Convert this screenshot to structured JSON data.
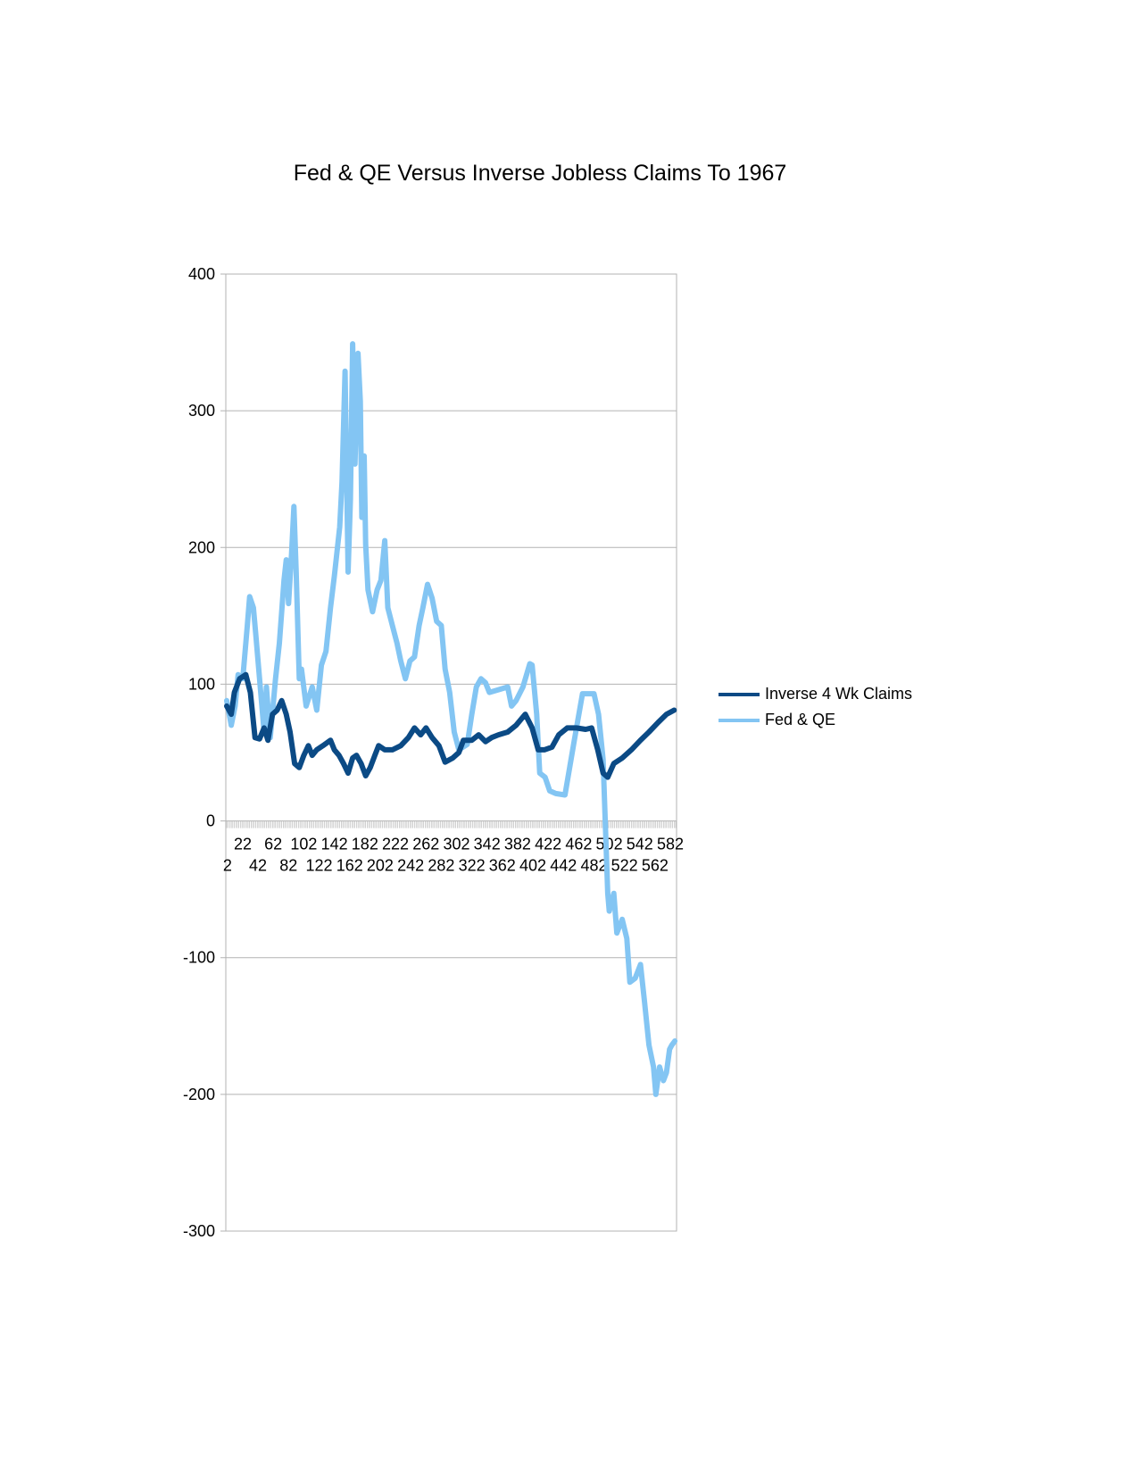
{
  "chart_data": {
    "type": "line",
    "title": "Fed & QE Versus Inverse Jobless Claims To 1967",
    "xlabel": "",
    "ylabel": "",
    "ylim": [
      -300,
      400
    ],
    "xlim": [
      1,
      589
    ],
    "y_ticks": [
      400,
      300,
      200,
      100,
      0,
      -100,
      -200,
      -300
    ],
    "x_tick_labels": [
      "2",
      "22",
      "42",
      "62",
      "82",
      "102",
      "122",
      "142",
      "162",
      "182",
      "202",
      "222",
      "242",
      "262",
      "282",
      "302",
      "322",
      "342",
      "362",
      "382",
      "402",
      "422",
      "442",
      "462",
      "482",
      "502",
      "522",
      "542",
      "562",
      "582"
    ],
    "grid": true,
    "legend_placement": "right",
    "series": [
      {
        "name": "Inverse 4 Wk Claims",
        "color": "#0b4a85",
        "points": [
          [
            1,
            84
          ],
          [
            7,
            78
          ],
          [
            11,
            94
          ],
          [
            18,
            104
          ],
          [
            26,
            107
          ],
          [
            32,
            94
          ],
          [
            38,
            61
          ],
          [
            44,
            60
          ],
          [
            50,
            68
          ],
          [
            55,
            59
          ],
          [
            61,
            78
          ],
          [
            67,
            81
          ],
          [
            73,
            88
          ],
          [
            79,
            78
          ],
          [
            84,
            65
          ],
          [
            90,
            42
          ],
          [
            96,
            39
          ],
          [
            102,
            48
          ],
          [
            108,
            55
          ],
          [
            113,
            48
          ],
          [
            119,
            52
          ],
          [
            127,
            55
          ],
          [
            137,
            59
          ],
          [
            142,
            52
          ],
          [
            148,
            48
          ],
          [
            154,
            42
          ],
          [
            160,
            35
          ],
          [
            166,
            46
          ],
          [
            171,
            48
          ],
          [
            177,
            42
          ],
          [
            183,
            33
          ],
          [
            189,
            39
          ],
          [
            195,
            48
          ],
          [
            200,
            55
          ],
          [
            208,
            52
          ],
          [
            218,
            52
          ],
          [
            229,
            55
          ],
          [
            239,
            61
          ],
          [
            247,
            68
          ],
          [
            255,
            63
          ],
          [
            262,
            68
          ],
          [
            270,
            61
          ],
          [
            279,
            55
          ],
          [
            287,
            43
          ],
          [
            297,
            46
          ],
          [
            305,
            50
          ],
          [
            311,
            59
          ],
          [
            322,
            59
          ],
          [
            331,
            63
          ],
          [
            340,
            58
          ],
          [
            348,
            61
          ],
          [
            357,
            63
          ],
          [
            369,
            65
          ],
          [
            380,
            70
          ],
          [
            392,
            78
          ],
          [
            401,
            68
          ],
          [
            409,
            52
          ],
          [
            417,
            52
          ],
          [
            427,
            54
          ],
          [
            436,
            63
          ],
          [
            447,
            68
          ],
          [
            459,
            68
          ],
          [
            471,
            67
          ],
          [
            479,
            68
          ],
          [
            487,
            52
          ],
          [
            494,
            35
          ],
          [
            500,
            32
          ],
          [
            508,
            42
          ],
          [
            519,
            46
          ],
          [
            531,
            52
          ],
          [
            543,
            59
          ],
          [
            554,
            65
          ],
          [
            566,
            72
          ],
          [
            577,
            78
          ],
          [
            587,
            81
          ]
        ]
      },
      {
        "name": "Fed & QE",
        "color": "#83c5f3",
        "points": [
          [
            1,
            88
          ],
          [
            7,
            70
          ],
          [
            12,
            84
          ],
          [
            16,
            107
          ],
          [
            22,
            104
          ],
          [
            28,
            143
          ],
          [
            31,
            164
          ],
          [
            36,
            156
          ],
          [
            39,
            137
          ],
          [
            44,
            104
          ],
          [
            50,
            65
          ],
          [
            53,
            98
          ],
          [
            58,
            61
          ],
          [
            65,
            104
          ],
          [
            70,
            130
          ],
          [
            76,
            176
          ],
          [
            79,
            191
          ],
          [
            82,
            159
          ],
          [
            86,
            196
          ],
          [
            89,
            230
          ],
          [
            92,
            183
          ],
          [
            96,
            104
          ],
          [
            99,
            111
          ],
          [
            105,
            84
          ],
          [
            113,
            98
          ],
          [
            119,
            81
          ],
          [
            125,
            114
          ],
          [
            131,
            124
          ],
          [
            137,
            156
          ],
          [
            142,
            179
          ],
          [
            149,
            215
          ],
          [
            152,
            248
          ],
          [
            156,
            329
          ],
          [
            160,
            182
          ],
          [
            163,
            235
          ],
          [
            166,
            349
          ],
          [
            169,
            261
          ],
          [
            173,
            342
          ],
          [
            176,
            307
          ],
          [
            178,
            222
          ],
          [
            181,
            267
          ],
          [
            183,
            202
          ],
          [
            186,
            169
          ],
          [
            192,
            153
          ],
          [
            198,
            169
          ],
          [
            203,
            176
          ],
          [
            208,
            205
          ],
          [
            212,
            156
          ],
          [
            218,
            143
          ],
          [
            224,
            130
          ],
          [
            229,
            117
          ],
          [
            235,
            104
          ],
          [
            241,
            117
          ],
          [
            247,
            120
          ],
          [
            253,
            143
          ],
          [
            258,
            156
          ],
          [
            264,
            173
          ],
          [
            270,
            163
          ],
          [
            276,
            146
          ],
          [
            282,
            143
          ],
          [
            287,
            111
          ],
          [
            293,
            94
          ],
          [
            299,
            65
          ],
          [
            305,
            52
          ],
          [
            316,
            56
          ],
          [
            322,
            78
          ],
          [
            328,
            98
          ],
          [
            334,
            104
          ],
          [
            340,
            101
          ],
          [
            345,
            94
          ],
          [
            357,
            96
          ],
          [
            369,
            98
          ],
          [
            374,
            84
          ],
          [
            380,
            88
          ],
          [
            389,
            98
          ],
          [
            398,
            115
          ],
          [
            401,
            114
          ],
          [
            407,
            78
          ],
          [
            411,
            35
          ],
          [
            418,
            32
          ],
          [
            424,
            22
          ],
          [
            432,
            20
          ],
          [
            444,
            19
          ],
          [
            456,
            58
          ],
          [
            467,
            93
          ],
          [
            482,
            93
          ],
          [
            488,
            78
          ],
          [
            494,
            45
          ],
          [
            500,
            -53
          ],
          [
            502,
            -66
          ],
          [
            508,
            -53
          ],
          [
            512,
            -82
          ],
          [
            519,
            -72
          ],
          [
            525,
            -86
          ],
          [
            529,
            -118
          ],
          [
            536,
            -115
          ],
          [
            543,
            -105
          ],
          [
            548,
            -131
          ],
          [
            554,
            -164
          ],
          [
            560,
            -180
          ],
          [
            563,
            -200
          ],
          [
            568,
            -180
          ],
          [
            573,
            -190
          ],
          [
            577,
            -184
          ],
          [
            581,
            -167
          ],
          [
            584,
            -164
          ],
          [
            588,
            -161
          ]
        ]
      }
    ]
  }
}
